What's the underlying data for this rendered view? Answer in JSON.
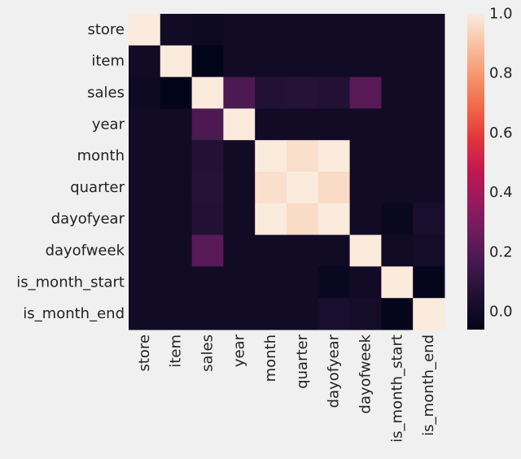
{
  "chart_data": {
    "type": "heatmap",
    "labels": [
      "store",
      "item",
      "sales",
      "year",
      "month",
      "quarter",
      "dayofyear",
      "dayofweek",
      "is_month_start",
      "is_month_end"
    ],
    "values": [
      [
        1.0,
        0.0,
        -0.01,
        0.0,
        0.0,
        0.0,
        0.0,
        0.0,
        0.0,
        0.0
      ],
      [
        0.0,
        1.0,
        -0.06,
        0.0,
        0.0,
        0.0,
        0.0,
        0.0,
        0.0,
        0.0
      ],
      [
        -0.01,
        -0.06,
        1.0,
        0.18,
        0.06,
        0.07,
        0.06,
        0.21,
        0.0,
        0.0
      ],
      [
        0.0,
        0.0,
        0.18,
        1.0,
        0.0,
        0.0,
        0.0,
        0.0,
        0.0,
        0.0
      ],
      [
        0.0,
        0.0,
        0.06,
        0.0,
        1.0,
        0.97,
        1.0,
        0.0,
        0.0,
        0.0
      ],
      [
        0.0,
        0.0,
        0.07,
        0.0,
        0.97,
        1.0,
        0.96,
        0.0,
        0.0,
        0.0
      ],
      [
        0.0,
        0.0,
        0.06,
        0.0,
        1.0,
        0.96,
        1.0,
        0.0,
        -0.03,
        0.03
      ],
      [
        0.0,
        0.0,
        0.21,
        0.0,
        0.0,
        0.0,
        0.0,
        1.0,
        0.0,
        0.01
      ],
      [
        0.0,
        0.0,
        0.0,
        0.0,
        0.0,
        0.0,
        -0.03,
        0.0,
        1.0,
        -0.05
      ],
      [
        0.0,
        0.0,
        0.0,
        0.0,
        0.0,
        0.0,
        0.03,
        0.01,
        -0.05,
        1.0
      ]
    ],
    "vmin": -0.06,
    "vmax": 1.0,
    "colormap": "rocket",
    "colorbar": {
      "ticks": [
        0.0,
        0.2,
        0.4,
        0.6,
        0.8,
        1.0
      ],
      "tick_labels": [
        "0.0",
        "0.2",
        "0.4",
        "0.6",
        "0.8",
        "1.0"
      ]
    },
    "title": "",
    "xlabel": "",
    "ylabel": "",
    "grid": false
  },
  "colors": {
    "background": "#f0f0f0",
    "text": "#222222"
  }
}
